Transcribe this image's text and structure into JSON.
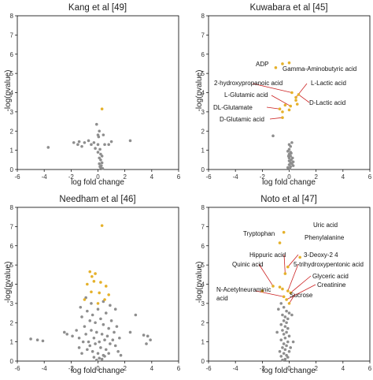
{
  "colors": {
    "grey_point": "#8e8e8e",
    "highlight_point": "#e5b12b",
    "arrow": "#cc2020",
    "axis": "#000000"
  },
  "chart_data": [
    {
      "type": "scatter",
      "title": "Kang et al [49]",
      "xlabel": "log fold change",
      "ylabel": "-log(pvalue)",
      "xlim": [
        -6,
        6
      ],
      "ylim": [
        0,
        8
      ],
      "xticks": [
        -6,
        -4,
        -2,
        0,
        2,
        4,
        6
      ],
      "yticks": [
        0,
        1,
        2,
        3,
        4,
        5,
        6,
        7,
        8
      ],
      "grid": false,
      "series": [
        {
          "role": "non-significant",
          "points": [
            [
              -3.7,
              1.15
            ],
            [
              -1.8,
              1.4
            ],
            [
              -1.5,
              1.3
            ],
            [
              -1.4,
              1.45
            ],
            [
              -1.2,
              1.2
            ],
            [
              -1.0,
              1.4
            ],
            [
              -0.7,
              1.5
            ],
            [
              -0.5,
              1.3
            ],
            [
              -0.3,
              1.4
            ],
            [
              -0.2,
              1.1
            ],
            [
              -0.1,
              2.35
            ],
            [
              0.0,
              1.8
            ],
            [
              0.1,
              2.0
            ],
            [
              0.05,
              1.7
            ],
            [
              0.0,
              1.3
            ],
            [
              0.15,
              1.05
            ],
            [
              0.2,
              0.8
            ],
            [
              0.1,
              0.6
            ],
            [
              0.2,
              0.5
            ],
            [
              0.3,
              0.35
            ],
            [
              0.25,
              0.2
            ],
            [
              0.2,
              0.1
            ],
            [
              0.35,
              0.05
            ],
            [
              0.1,
              0.3
            ],
            [
              0.3,
              0.7
            ],
            [
              0.5,
              1.3
            ],
            [
              0.8,
              1.3
            ],
            [
              1.0,
              1.45
            ],
            [
              0.4,
              1.8
            ],
            [
              2.4,
              1.5
            ],
            [
              0.0,
              0.9
            ],
            [
              0.15,
              0.15
            ]
          ]
        },
        {
          "role": "significant",
          "points": [
            [
              0.3,
              3.15
            ]
          ]
        }
      ],
      "annotations": []
    },
    {
      "type": "scatter",
      "title": "Kuwabara et al [45]",
      "xlabel": "log fold change",
      "ylabel": "-log(pvalue)",
      "xlim": [
        -6,
        6
      ],
      "ylim": [
        0,
        8
      ],
      "xticks": [
        -6,
        -4,
        -2,
        0,
        2,
        4,
        6
      ],
      "yticks": [
        0,
        1,
        2,
        3,
        4,
        5,
        6,
        7,
        8
      ],
      "grid": false,
      "series": [
        {
          "role": "non-significant",
          "points": [
            [
              -1.2,
              1.75
            ],
            [
              0.0,
              1.05
            ],
            [
              0.1,
              0.9
            ],
            [
              0.0,
              0.8
            ],
            [
              0.1,
              0.7
            ],
            [
              0.0,
              0.6
            ],
            [
              0.15,
              0.5
            ],
            [
              0.0,
              0.45
            ],
            [
              0.1,
              0.35
            ],
            [
              0.0,
              0.25
            ],
            [
              0.1,
              0.15
            ],
            [
              0.05,
              0.05
            ],
            [
              -0.1,
              0.1
            ],
            [
              0.2,
              0.3
            ],
            [
              -0.05,
              0.7
            ],
            [
              0.25,
              0.6
            ],
            [
              0.3,
              0.4
            ],
            [
              0.3,
              0.2
            ],
            [
              0.1,
              1.2
            ],
            [
              0.2,
              1.4
            ],
            [
              0.0,
              1.3
            ],
            [
              -0.1,
              0.95
            ],
            [
              0.15,
              0.85
            ]
          ]
        },
        {
          "role": "significant",
          "points": [
            [
              -1.0,
              5.3
            ],
            [
              -0.5,
              5.5
            ],
            [
              0.0,
              5.55
            ],
            [
              0.2,
              4.0
            ],
            [
              0.7,
              3.9
            ],
            [
              0.5,
              3.6
            ],
            [
              0.6,
              3.4
            ],
            [
              0.1,
              3.3
            ],
            [
              -0.3,
              3.35
            ],
            [
              -0.5,
              3.0
            ],
            [
              -0.7,
              3.15
            ],
            [
              -0.5,
              2.7
            ],
            [
              0.0,
              3.1
            ],
            [
              0.5,
              3.75
            ]
          ]
        }
      ],
      "annotations": [
        "ADP",
        "Gamma-Aminobutyric acid",
        "2-hydroxypropanoic acid",
        "L-Lactic acid",
        "L-Glutamic acid",
        "D-Lactic acid",
        "DL-Glutamate",
        "D-Glutamic acid"
      ]
    },
    {
      "type": "scatter",
      "title": "Needham et al [46]",
      "xlabel": "log fold change",
      "ylabel": "-log(pvalue)",
      "xlim": [
        -6,
        6
      ],
      "ylim": [
        0,
        8
      ],
      "xticks": [
        -6,
        -4,
        -2,
        0,
        2,
        4,
        6
      ],
      "yticks": [
        0,
        1,
        2,
        3,
        4,
        5,
        6,
        7,
        8
      ],
      "grid": false,
      "series": [
        {
          "role": "non-significant",
          "points": [
            [
              -5.0,
              1.15
            ],
            [
              -4.5,
              1.1
            ],
            [
              -4.1,
              1.05
            ],
            [
              -2.5,
              1.5
            ],
            [
              -2.3,
              1.4
            ],
            [
              -1.9,
              1.3
            ],
            [
              -1.6,
              1.6
            ],
            [
              -1.4,
              1.2
            ],
            [
              -1.2,
              2.3
            ],
            [
              -1.0,
              1.8
            ],
            [
              -0.8,
              2.6
            ],
            [
              -0.6,
              2.1
            ],
            [
              -0.4,
              2.4
            ],
            [
              -0.2,
              2.0
            ],
            [
              0.0,
              2.7
            ],
            [
              0.2,
              2.2
            ],
            [
              0.4,
              1.9
            ],
            [
              0.6,
              2.5
            ],
            [
              0.8,
              1.7
            ],
            [
              1.0,
              2.1
            ],
            [
              1.2,
              1.5
            ],
            [
              1.4,
              1.8
            ],
            [
              1.6,
              1.2
            ],
            [
              2.4,
              1.5
            ],
            [
              2.8,
              2.4
            ],
            [
              3.4,
              1.35
            ],
            [
              3.7,
              1.3
            ],
            [
              3.9,
              1.1
            ],
            [
              3.6,
              0.9
            ],
            [
              -1.1,
              1.0
            ],
            [
              -0.9,
              1.4
            ],
            [
              -0.7,
              1.0
            ],
            [
              -0.5,
              1.6
            ],
            [
              -0.3,
              1.2
            ],
            [
              -0.1,
              1.5
            ],
            [
              0.1,
              1.0
            ],
            [
              0.3,
              1.4
            ],
            [
              0.5,
              1.1
            ],
            [
              0.7,
              1.3
            ],
            [
              0.9,
              0.9
            ],
            [
              1.1,
              1.1
            ],
            [
              1.3,
              0.8
            ],
            [
              -0.8,
              0.6
            ],
            [
              -0.6,
              0.8
            ],
            [
              -0.4,
              0.5
            ],
            [
              -0.2,
              0.9
            ],
            [
              0.0,
              0.4
            ],
            [
              0.2,
              0.7
            ],
            [
              0.4,
              0.3
            ],
            [
              0.6,
              0.6
            ],
            [
              0.8,
              0.4
            ],
            [
              -0.3,
              0.2
            ],
            [
              0.1,
              0.15
            ],
            [
              0.3,
              0.1
            ],
            [
              -0.1,
              0.05
            ],
            [
              0.5,
              0.25
            ],
            [
              -1.4,
              0.7
            ],
            [
              -1.2,
              0.4
            ],
            [
              1.5,
              0.5
            ],
            [
              1.7,
              0.3
            ],
            [
              -0.5,
              3.0
            ],
            [
              -0.9,
              3.3
            ],
            [
              0.4,
              3.1
            ],
            [
              0.9,
              2.9
            ],
            [
              -1.3,
              2.8
            ],
            [
              1.3,
              2.7
            ]
          ]
        },
        {
          "role": "significant",
          "points": [
            [
              0.3,
              7.05
            ],
            [
              -0.6,
              4.65
            ],
            [
              -0.2,
              4.55
            ],
            [
              -0.45,
              4.4
            ],
            [
              -0.8,
              4.0
            ],
            [
              -0.3,
              4.15
            ],
            [
              0.2,
              4.1
            ],
            [
              0.6,
              3.9
            ],
            [
              -0.5,
              3.6
            ],
            [
              0.1,
              3.55
            ],
            [
              0.8,
              3.45
            ],
            [
              -1.0,
              3.2
            ],
            [
              0.5,
              3.2
            ],
            [
              0.0,
              3.0
            ]
          ]
        }
      ],
      "annotations": []
    },
    {
      "type": "scatter",
      "title": "Noto et al [47]",
      "xlabel": "log fold change",
      "ylabel": "-log(pvalue)",
      "xlim": [
        -6,
        6
      ],
      "ylim": [
        0,
        8
      ],
      "xticks": [
        -6,
        -4,
        -2,
        0,
        2,
        4,
        6
      ],
      "yticks": [
        0,
        1,
        2,
        3,
        4,
        5,
        6,
        7,
        8
      ],
      "grid": false,
      "series": [
        {
          "role": "non-significant",
          "points": [
            [
              -0.6,
              3.0
            ],
            [
              -0.4,
              2.8
            ],
            [
              -0.2,
              2.6
            ],
            [
              0.0,
              2.5
            ],
            [
              -0.5,
              2.4
            ],
            [
              -0.3,
              2.3
            ],
            [
              -0.1,
              2.2
            ],
            [
              -0.4,
              2.1
            ],
            [
              -0.2,
              2.0
            ],
            [
              -0.6,
              1.9
            ],
            [
              -0.3,
              1.8
            ],
            [
              -0.1,
              1.7
            ],
            [
              -0.5,
              1.6
            ],
            [
              -0.2,
              1.5
            ],
            [
              -0.4,
              1.4
            ],
            [
              0.0,
              1.3
            ],
            [
              -0.3,
              1.2
            ],
            [
              -0.6,
              1.1
            ],
            [
              -0.1,
              1.0
            ],
            [
              -0.4,
              0.9
            ],
            [
              -0.2,
              0.8
            ],
            [
              -0.5,
              0.7
            ],
            [
              -0.3,
              0.6
            ],
            [
              0.0,
              0.5
            ],
            [
              -0.4,
              0.4
            ],
            [
              -0.2,
              0.3
            ],
            [
              -0.6,
              0.25
            ],
            [
              -0.1,
              0.2
            ],
            [
              -0.3,
              0.1
            ],
            [
              -0.5,
              0.05
            ],
            [
              -0.8,
              2.7
            ],
            [
              0.2,
              2.4
            ],
            [
              -0.9,
              1.5
            ],
            [
              0.3,
              1.0
            ],
            [
              -0.7,
              0.5
            ],
            [
              0.1,
              0.7
            ]
          ]
        },
        {
          "role": "significant",
          "points": [
            [
              -0.4,
              6.7
            ],
            [
              -0.7,
              6.15
            ],
            [
              0.8,
              5.4
            ],
            [
              -0.1,
              4.9
            ],
            [
              -0.3,
              4.55
            ],
            [
              -1.2,
              3.9
            ],
            [
              -0.7,
              3.85
            ],
            [
              -0.5,
              3.75
            ],
            [
              -0.1,
              3.65
            ],
            [
              0.1,
              3.55
            ],
            [
              -2.0,
              3.65
            ],
            [
              -0.4,
              3.35
            ],
            [
              -0.2,
              3.2
            ],
            [
              0.0,
              3.0
            ]
          ]
        }
      ],
      "annotations": [
        "Tryptophan",
        "Uric acid",
        "Phenylalanine",
        "Hippuric acid",
        "3-Deoxy-2 4",
        "5-trihydroxypentonic acid",
        "Quinic acid",
        "Glyceric acid",
        "Creatinine",
        "N-Acetylneuraminic",
        "acid",
        "Sucrose"
      ]
    }
  ]
}
